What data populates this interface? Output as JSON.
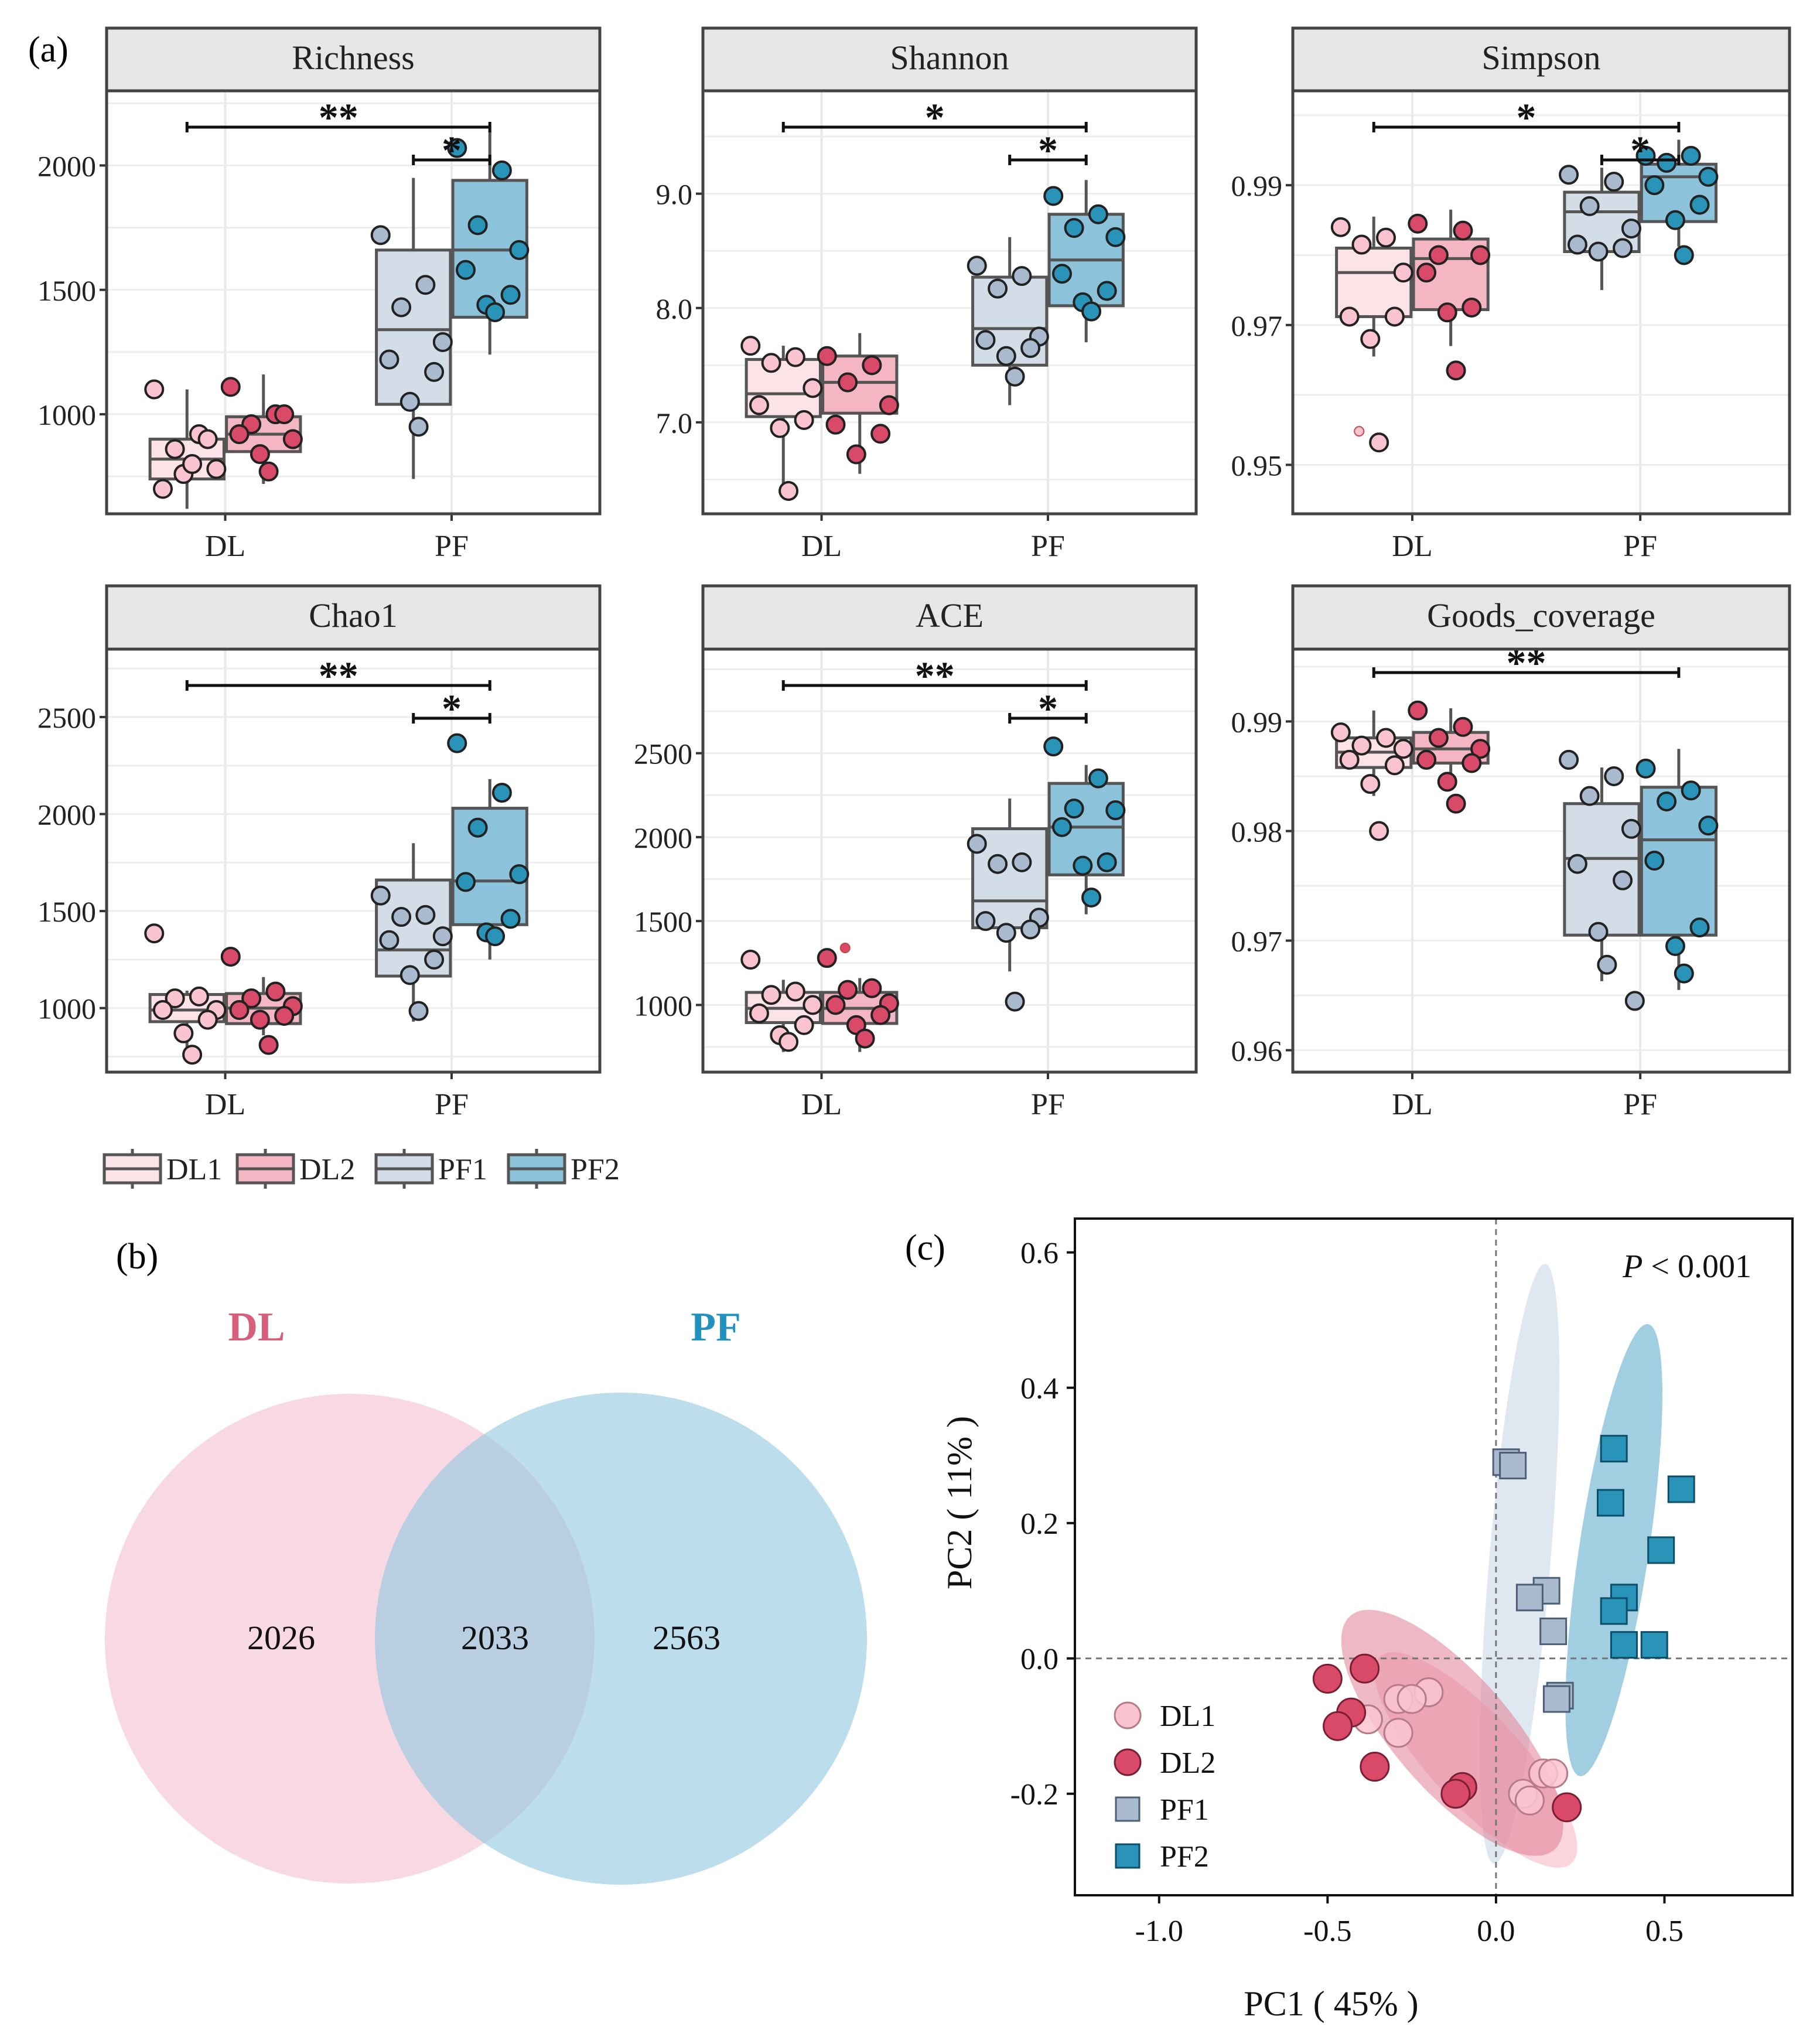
{
  "colors": {
    "DL1": "#f9c4d0",
    "DL2": "#d94a68",
    "PF1": "#a9bacf",
    "PF2": "#2a93b8",
    "box_DL1": "#fbe3e8",
    "box_DL2": "#f3b6c2",
    "box_PF1": "#d3dde8",
    "box_PF2": "#8cc3da",
    "venn_DL": "#f4bfd0",
    "venn_PF": "#8fc6e0",
    "venn_DL_text": "#d65f7d",
    "venn_PF_text": "#2191c0",
    "strip": "#e6e6e6"
  },
  "panel_labels": {
    "a": "(a)",
    "b": "(b)",
    "c": "(c)"
  },
  "legend_a": {
    "items": [
      "DL1",
      "DL2",
      "PF1",
      "PF2"
    ]
  },
  "chart_data": [
    {
      "type": "box",
      "panel": "a",
      "title": "Richness",
      "categories": [
        "DL",
        "PF"
      ],
      "groups": [
        "DL1",
        "DL2",
        "PF1",
        "PF2"
      ],
      "ylim": [
        600,
        2300
      ],
      "yticks": [
        1000,
        1500,
        2000
      ],
      "ytick_labels": [
        "1000",
        "1500",
        "2000"
      ],
      "boxes": [
        {
          "group": "DL1",
          "min": 620,
          "q1": 740,
          "median": 820,
          "q3": 900,
          "max": 1100
        },
        {
          "group": "DL2",
          "min": 720,
          "q1": 850,
          "median": 920,
          "q3": 990,
          "max": 1160
        },
        {
          "group": "PF1",
          "min": 740,
          "q1": 1040,
          "median": 1340,
          "q3": 1660,
          "max": 1950
        },
        {
          "group": "PF2",
          "min": 1240,
          "q1": 1390,
          "median": 1660,
          "q3": 1940,
          "max": 2140
        }
      ],
      "points": [
        [
          1100,
          920,
          860,
          780,
          700,
          900,
          760,
          800
        ],
        [
          1110,
          1000,
          960,
          900,
          920,
          1000,
          840,
          770
        ],
        [
          1720,
          1520,
          1430,
          1290,
          1220,
          1170,
          1050,
          950
        ],
        [
          2070,
          1980,
          1760,
          1660,
          1580,
          1480,
          1440,
          1410
        ]
      ],
      "outliers": [],
      "significance": [
        {
          "from": "DL1",
          "to": "PF2",
          "label": "**"
        },
        {
          "from": "PF1",
          "to": "PF2",
          "label": "*"
        }
      ]
    },
    {
      "type": "box",
      "panel": "a",
      "title": "Shannon",
      "categories": [
        "DL",
        "PF"
      ],
      "groups": [
        "DL1",
        "DL2",
        "PF1",
        "PF2"
      ],
      "ylim": [
        6.2,
        9.9
      ],
      "yticks": [
        7.0,
        8.0,
        9.0
      ],
      "ytick_labels": [
        "7.0",
        "8.0",
        "9.0"
      ],
      "boxes": [
        {
          "group": "DL1",
          "min": 6.42,
          "q1": 7.05,
          "median": 7.25,
          "q3": 7.55,
          "max": 7.67
        },
        {
          "group": "DL2",
          "min": 6.55,
          "q1": 7.08,
          "median": 7.35,
          "q3": 7.58,
          "max": 7.78
        },
        {
          "group": "PF1",
          "min": 7.15,
          "q1": 7.5,
          "median": 7.82,
          "q3": 8.27,
          "max": 8.62
        },
        {
          "group": "PF2",
          "min": 7.7,
          "q1": 8.02,
          "median": 8.42,
          "q3": 8.82,
          "max": 9.12
        }
      ],
      "points": [
        [
          7.67,
          7.57,
          7.52,
          7.3,
          7.15,
          7.02,
          6.95,
          6.4
        ],
        [
          7.58,
          7.5,
          7.35,
          7.15,
          6.98,
          6.9,
          6.72
        ],
        [
          8.37,
          8.28,
          8.17,
          7.75,
          7.72,
          7.65,
          7.58,
          7.4
        ],
        [
          8.98,
          8.82,
          8.7,
          8.62,
          8.3,
          8.15,
          8.05,
          7.97
        ]
      ],
      "outliers": [],
      "significance": [
        {
          "from": "DL1",
          "to": "PF2",
          "label": "*"
        },
        {
          "from": "PF1",
          "to": "PF2",
          "label": "*"
        }
      ]
    },
    {
      "type": "box",
      "panel": "a",
      "title": "Simpson",
      "categories": [
        "DL",
        "PF"
      ],
      "groups": [
        "DL1",
        "DL2",
        "PF1",
        "PF2"
      ],
      "ylim": [
        0.943,
        1.0035
      ],
      "yticks": [
        0.95,
        0.97,
        0.99
      ],
      "ytick_labels": [
        "0.95",
        "0.97",
        "0.99"
      ],
      "boxes": [
        {
          "group": "DL1",
          "min": 0.9655,
          "q1": 0.9712,
          "median": 0.9775,
          "q3": 0.981,
          "max": 0.9855
        },
        {
          "group": "DL2",
          "min": 0.967,
          "q1": 0.9722,
          "median": 0.9795,
          "q3": 0.9823,
          "max": 0.9865
        },
        {
          "group": "PF1",
          "min": 0.975,
          "q1": 0.9805,
          "median": 0.9862,
          "q3": 0.989,
          "max": 0.9925
        },
        {
          "group": "PF2",
          "min": 0.9812,
          "q1": 0.9848,
          "median": 0.9912,
          "q3": 0.993,
          "max": 0.9965
        }
      ],
      "points": [
        [
          0.984,
          0.9825,
          0.9815,
          0.9775,
          0.9712,
          0.9712,
          0.968,
          0.9532
        ],
        [
          0.9845,
          0.9835,
          0.98,
          0.98,
          0.9775,
          0.9725,
          0.9718,
          0.9635
        ],
        [
          0.9915,
          0.9905,
          0.987,
          0.9838,
          0.9815,
          0.981,
          0.9805
        ],
        [
          0.9942,
          0.9942,
          0.9932,
          0.9912,
          0.99,
          0.9872,
          0.985,
          0.98
        ]
      ],
      "outliers": [
        {
          "group": "DL1",
          "value": 0.9548
        }
      ],
      "significance": [
        {
          "from": "DL1",
          "to": "PF2",
          "label": "*"
        },
        {
          "from": "PF1",
          "to": "PF2",
          "label": "*"
        }
      ]
    },
    {
      "type": "box",
      "panel": "a",
      "title": "Chao1",
      "categories": [
        "DL",
        "PF"
      ],
      "groups": [
        "DL1",
        "DL2",
        "PF1",
        "PF2"
      ],
      "ylim": [
        670,
        2850
      ],
      "yticks": [
        1000,
        1500,
        2000,
        2500
      ],
      "ytick_labels": [
        "1000",
        "1500",
        "2000",
        "2500"
      ],
      "boxes": [
        {
          "group": "DL1",
          "min": 760,
          "q1": 930,
          "median": 990,
          "q3": 1070,
          "max": 1090
        },
        {
          "group": "DL2",
          "min": 860,
          "q1": 920,
          "median": 1000,
          "q3": 1075,
          "max": 1160
        },
        {
          "group": "PF1",
          "min": 930,
          "q1": 1165,
          "median": 1300,
          "q3": 1660,
          "max": 1850
        },
        {
          "group": "PF2",
          "min": 1250,
          "q1": 1430,
          "median": 1655,
          "q3": 2030,
          "max": 2180
        }
      ],
      "points": [
        [
          1385,
          1060,
          1050,
          990,
          990,
          940,
          870,
          760
        ],
        [
          1265,
          1085,
          1050,
          1010,
          990,
          960,
          940,
          810
        ],
        [
          1580,
          1480,
          1470,
          1370,
          1350,
          1250,
          1170,
          985
        ],
        [
          2365,
          2110,
          1930,
          1690,
          1650,
          1460,
          1390,
          1370
        ]
      ],
      "outliers": [],
      "significance": [
        {
          "from": "DL1",
          "to": "PF2",
          "label": "**"
        },
        {
          "from": "PF1",
          "to": "PF2",
          "label": "*"
        }
      ]
    },
    {
      "type": "box",
      "panel": "a",
      "title": "ACE",
      "categories": [
        "DL",
        "PF"
      ],
      "groups": [
        "DL1",
        "DL2",
        "PF1",
        "PF2"
      ],
      "ylim": [
        600,
        3120
      ],
      "yticks": [
        1000,
        1500,
        2000,
        2500
      ],
      "ytick_labels": [
        "1000",
        "1500",
        "2000",
        "2500"
      ],
      "boxes": [
        {
          "group": "DL1",
          "min": 720,
          "q1": 895,
          "median": 980,
          "q3": 1075,
          "max": 1150
        },
        {
          "group": "DL2",
          "min": 720,
          "q1": 890,
          "median": 980,
          "q3": 1075,
          "max": 1160
        },
        {
          "group": "PF1",
          "min": 1200,
          "q1": 1460,
          "median": 1620,
          "q3": 2050,
          "max": 2230
        },
        {
          "group": "PF2",
          "min": 1540,
          "q1": 1775,
          "median": 2060,
          "q3": 2320,
          "max": 2430
        }
      ],
      "points": [
        [
          1270,
          1080,
          1060,
          1000,
          950,
          880,
          820,
          780
        ],
        [
          1280,
          1100,
          1090,
          1010,
          1000,
          940,
          880,
          800
        ],
        [
          1960,
          1850,
          1840,
          1520,
          1500,
          1450,
          1430,
          1020
        ],
        [
          2540,
          2350,
          2170,
          2160,
          2060,
          1850,
          1830,
          1640
        ]
      ],
      "outliers": [
        {
          "group": "DL2",
          "value": 1340
        }
      ],
      "significance": [
        {
          "from": "DL1",
          "to": "PF2",
          "label": "**"
        },
        {
          "from": "PF1",
          "to": "PF2",
          "label": "*"
        }
      ]
    },
    {
      "type": "box",
      "panel": "a",
      "title": "Goods_coverage",
      "categories": [
        "DL",
        "PF"
      ],
      "groups": [
        "DL1",
        "DL2",
        "PF1",
        "PF2"
      ],
      "ylim": [
        0.958,
        0.9966
      ],
      "yticks": [
        0.96,
        0.97,
        0.98,
        0.99
      ],
      "ytick_labels": [
        "0.96",
        "0.97",
        "0.98",
        "0.99"
      ],
      "boxes": [
        {
          "group": "DL1",
          "min": 0.9832,
          "q1": 0.9858,
          "median": 0.9872,
          "q3": 0.9885,
          "max": 0.991
        },
        {
          "group": "DL2",
          "min": 0.9845,
          "q1": 0.9862,
          "median": 0.9875,
          "q3": 0.989,
          "max": 0.9912
        },
        {
          "group": "PF1",
          "min": 0.9663,
          "q1": 0.9705,
          "median": 0.9775,
          "q3": 0.9825,
          "max": 0.9858
        },
        {
          "group": "PF2",
          "min": 0.9655,
          "q1": 0.9705,
          "median": 0.9792,
          "q3": 0.984,
          "max": 0.9875
        }
      ],
      "points": [
        [
          0.989,
          0.9885,
          0.9878,
          0.9875,
          0.9865,
          0.986,
          0.9843,
          0.98
        ],
        [
          0.991,
          0.9895,
          0.9885,
          0.9875,
          0.9865,
          0.9862,
          0.9845,
          0.9825
        ],
        [
          0.9865,
          0.985,
          0.9832,
          0.9802,
          0.977,
          0.9755,
          0.9708,
          0.9678,
          0.9645
        ],
        [
          0.9857,
          0.9837,
          0.9827,
          0.9805,
          0.9773,
          0.9712,
          0.9695,
          0.967
        ]
      ],
      "outliers": [],
      "significance": [
        {
          "from": "DL1",
          "to": "PF2",
          "label": "**"
        }
      ]
    },
    {
      "type": "venn",
      "panel": "b",
      "sets": [
        {
          "name": "DL",
          "only": 2026
        },
        {
          "name": "PF",
          "only": 2563
        }
      ],
      "intersection": 2033
    },
    {
      "type": "scatter",
      "panel": "c",
      "xlabel": "PC1 ( 45% )",
      "ylabel": "PC2 ( 11% )",
      "xlim": [
        -1.25,
        0.88
      ],
      "ylim": [
        -0.35,
        0.65
      ],
      "xticks": [
        -1.0,
        -0.5,
        0.0,
        0.5
      ],
      "xtick_labels": [
        "-1.0",
        "-0.5",
        "0.0",
        "0.5"
      ],
      "yticks": [
        -0.2,
        0.0,
        0.2,
        0.4,
        0.6
      ],
      "ytick_labels": [
        "-0.2",
        "0.0",
        "0.2",
        "0.4",
        "0.6"
      ],
      "annotation": {
        "prefix": "P",
        "rest": " < 0.001"
      },
      "series": [
        {
          "name": "DL1",
          "marker": "circle",
          "points": [
            [
              -0.29,
              -0.06
            ],
            [
              -0.2,
              -0.05
            ],
            [
              -0.25,
              -0.06
            ],
            [
              -0.38,
              -0.09
            ],
            [
              -0.29,
              -0.11
            ],
            [
              0.14,
              -0.17
            ],
            [
              0.17,
              -0.17
            ],
            [
              0.08,
              -0.2
            ],
            [
              0.1,
              -0.21
            ]
          ]
        },
        {
          "name": "DL2",
          "marker": "circle",
          "points": [
            [
              -0.5,
              -0.03
            ],
            [
              -0.39,
              -0.015
            ],
            [
              -0.43,
              -0.08
            ],
            [
              -0.47,
              -0.1
            ],
            [
              -0.36,
              -0.16
            ],
            [
              -0.1,
              -0.19
            ],
            [
              -0.12,
              -0.2
            ],
            [
              0.21,
              -0.22
            ]
          ]
        },
        {
          "name": "PF1",
          "marker": "square",
          "points": [
            [
              0.03,
              0.29
            ],
            [
              0.05,
              0.285
            ],
            [
              0.15,
              0.1
            ],
            [
              0.1,
              0.09
            ],
            [
              0.17,
              0.04
            ],
            [
              0.19,
              -0.055
            ],
            [
              0.18,
              -0.06
            ]
          ]
        },
        {
          "name": "PF2",
          "marker": "square",
          "points": [
            [
              0.35,
              0.31
            ],
            [
              0.34,
              0.23
            ],
            [
              0.55,
              0.25
            ],
            [
              0.49,
              0.16
            ],
            [
              0.38,
              0.09
            ],
            [
              0.35,
              0.07
            ],
            [
              0.38,
              0.02
            ],
            [
              0.47,
              0.02
            ]
          ]
        }
      ],
      "ellipses": [
        {
          "group": "DL1",
          "cx": -0.06,
          "cy": -0.15,
          "rx": 0.33,
          "ry": 0.085,
          "angle_deg": -25
        },
        {
          "group": "DL2",
          "cx": -0.13,
          "cy": -0.11,
          "rx": 0.36,
          "ry": 0.11,
          "angle_deg": -25
        },
        {
          "group": "PF1",
          "cx": 0.07,
          "cy": 0.14,
          "rx": 0.45,
          "ry": 0.09,
          "angle_deg": 80
        },
        {
          "group": "PF2",
          "cx": 0.35,
          "cy": 0.16,
          "rx": 0.35,
          "ry": 0.1,
          "angle_deg": 72
        }
      ]
    }
  ]
}
